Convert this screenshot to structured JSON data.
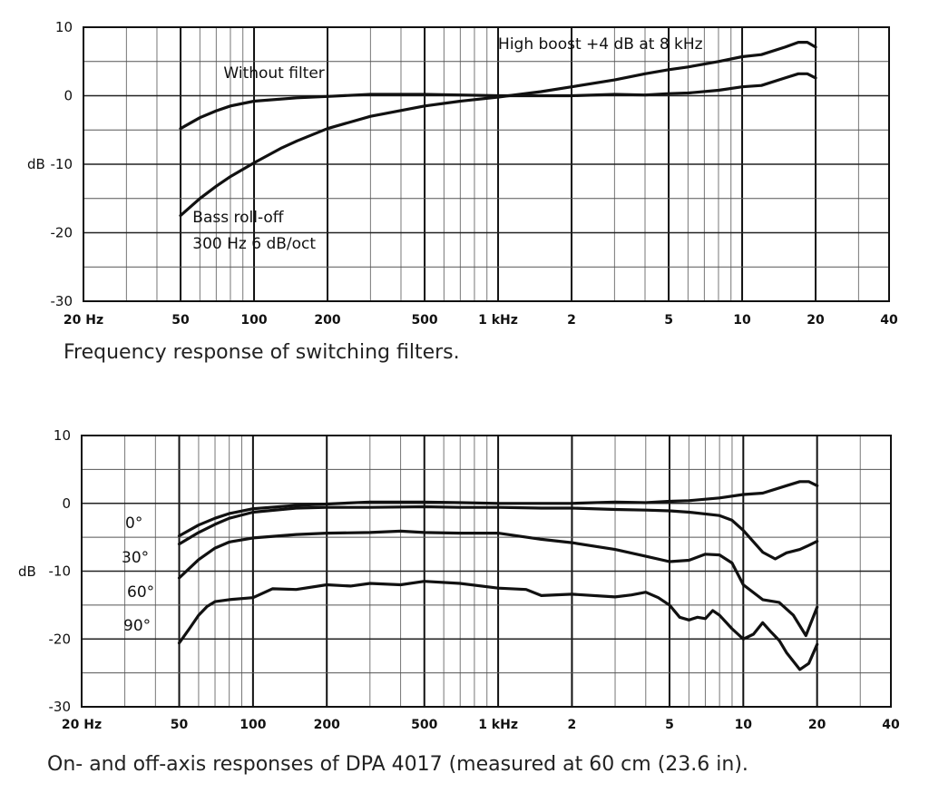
{
  "chart_data": [
    {
      "type": "line",
      "title": "",
      "caption": "Frequency response of switching filters.",
      "xscale": "log",
      "xlim": [
        20,
        40000
      ],
      "ylim": [
        -30,
        10
      ],
      "xlabel": "",
      "ylabel": "dB",
      "y_ticks": [
        {
          "value": 10,
          "label": "10"
        },
        {
          "value": 0,
          "label": "0"
        },
        {
          "value": -10,
          "label": "-10"
        },
        {
          "value": -20,
          "label": "-20"
        },
        {
          "value": -30,
          "label": "-30"
        }
      ],
      "x_ticks": [
        {
          "value": 20,
          "label": "20 Hz"
        },
        {
          "value": 50,
          "label": "50"
        },
        {
          "value": 100,
          "label": "100"
        },
        {
          "value": 200,
          "label": "200"
        },
        {
          "value": 500,
          "label": "500"
        },
        {
          "value": 1000,
          "label": "1 kHz"
        },
        {
          "value": 2000,
          "label": "2"
        },
        {
          "value": 5000,
          "label": "5"
        },
        {
          "value": 10000,
          "label": "10"
        },
        {
          "value": 20000,
          "label": "20"
        },
        {
          "value": 40000,
          "label": "40"
        }
      ],
      "grid": true,
      "annotations": [
        {
          "text": "Without filter",
          "x": 75,
          "y": 2.6,
          "anchor": "start"
        },
        {
          "text": "High boost +4 dB at 8 kHz",
          "x": 1000,
          "y": 6.8,
          "anchor": "start"
        },
        {
          "text": "Bass roll-off",
          "x": 56,
          "y": -18.5,
          "anchor": "start"
        },
        {
          "text": "300 Hz 6 dB/oct",
          "x": 56,
          "y": -22.3,
          "anchor": "start"
        }
      ],
      "series": [
        {
          "name": "",
          "x": [
            50,
            60,
            70,
            80,
            100,
            150,
            200,
            300,
            500,
            700,
            1000,
            1500,
            2000,
            3000,
            4000,
            5000,
            6000,
            8000,
            10000,
            12000,
            15000,
            17000,
            18500,
            20000
          ],
          "values": [
            -4.8,
            -3.2,
            -2.2,
            -1.5,
            -0.8,
            -0.3,
            -0.1,
            0.2,
            0.2,
            0.1,
            0.0,
            0.0,
            0.0,
            0.2,
            0.1,
            0.3,
            0.4,
            0.8,
            1.3,
            1.5,
            2.6,
            3.2,
            3.2,
            2.6
          ]
        },
        {
          "name": "",
          "x": [
            50,
            60,
            70,
            80,
            100,
            130,
            150,
            200,
            300,
            500,
            700,
            1000,
            1500,
            2000,
            3000,
            4000,
            5000,
            6000,
            8000,
            10000,
            12000,
            15000,
            17000,
            18500,
            20000
          ],
          "values": [
            -17.5,
            -15.0,
            -13.2,
            -11.8,
            -9.8,
            -7.6,
            -6.6,
            -4.8,
            -3.0,
            -1.5,
            -0.8,
            -0.2,
            0.6,
            1.3,
            2.3,
            3.2,
            3.8,
            4.2,
            5.0,
            5.7,
            6.0,
            7.1,
            7.8,
            7.8,
            7.1
          ]
        }
      ]
    },
    {
      "type": "line",
      "title": "",
      "caption": "On- and off-axis responses of DPA 4017 (measured at 60 cm (23.6 in).",
      "xscale": "log",
      "xlim": [
        20,
        40000
      ],
      "ylim": [
        -30,
        10
      ],
      "xlabel": "",
      "ylabel": "dB",
      "y_ticks": [
        {
          "value": 10,
          "label": "10"
        },
        {
          "value": 0,
          "label": "0"
        },
        {
          "value": -10,
          "label": "-10"
        },
        {
          "value": -20,
          "label": "-20"
        },
        {
          "value": -30,
          "label": "-30"
        }
      ],
      "x_ticks": [
        {
          "value": 20,
          "label": "20 Hz"
        },
        {
          "value": 50,
          "label": "50"
        },
        {
          "value": 100,
          "label": "100"
        },
        {
          "value": 200,
          "label": "200"
        },
        {
          "value": 500,
          "label": "500"
        },
        {
          "value": 1000,
          "label": "1 kHz"
        },
        {
          "value": 2000,
          "label": "2"
        },
        {
          "value": 5000,
          "label": "5"
        },
        {
          "value": 10000,
          "label": "10"
        },
        {
          "value": 20000,
          "label": "20"
        },
        {
          "value": 40000,
          "label": "40"
        }
      ],
      "grid": true,
      "series": [
        {
          "name": "0°",
          "x": [
            50,
            60,
            70,
            80,
            100,
            150,
            200,
            300,
            500,
            700,
            1000,
            1500,
            2000,
            3000,
            4000,
            5000,
            6000,
            8000,
            10000,
            12000,
            15000,
            17000,
            18500,
            20000
          ],
          "values": [
            -4.8,
            -3.2,
            -2.2,
            -1.5,
            -0.8,
            -0.3,
            -0.1,
            0.2,
            0.2,
            0.1,
            0.0,
            0.0,
            0.0,
            0.2,
            0.1,
            0.3,
            0.4,
            0.8,
            1.3,
            1.5,
            2.6,
            3.2,
            3.2,
            2.6
          ]
        },
        {
          "name": "30°",
          "x": [
            50,
            60,
            70,
            80,
            100,
            150,
            200,
            300,
            500,
            700,
            1000,
            1500,
            2000,
            3000,
            4000,
            5000,
            6000,
            8000,
            9000,
            10000,
            12000,
            13500,
            15000,
            17000,
            18500,
            20000
          ],
          "values": [
            -6.0,
            -4.3,
            -3.1,
            -2.2,
            -1.3,
            -0.7,
            -0.6,
            -0.6,
            -0.5,
            -0.6,
            -0.6,
            -0.7,
            -0.7,
            -0.9,
            -1.0,
            -1.1,
            -1.3,
            -1.8,
            -2.5,
            -4.0,
            -7.2,
            -8.2,
            -7.3,
            -6.8,
            -6.2,
            -5.6
          ]
        },
        {
          "name": "60°",
          "x": [
            50,
            60,
            70,
            80,
            100,
            150,
            200,
            300,
            400,
            500,
            700,
            1000,
            1500,
            2000,
            3000,
            4000,
            5000,
            6000,
            7000,
            8000,
            9000,
            10000,
            12000,
            14000,
            16000,
            18000,
            20000
          ],
          "values": [
            -11.0,
            -8.3,
            -6.6,
            -5.7,
            -5.1,
            -4.6,
            -4.4,
            -4.3,
            -4.1,
            -4.3,
            -4.4,
            -4.4,
            -5.3,
            -5.8,
            -6.8,
            -7.8,
            -8.6,
            -8.4,
            -7.5,
            -7.6,
            -8.8,
            -12.0,
            -14.2,
            -14.6,
            -16.5,
            -19.5,
            -15.3
          ]
        },
        {
          "name": "90°",
          "x": [
            50,
            55,
            60,
            65,
            70,
            80,
            100,
            120,
            150,
            200,
            250,
            300,
            400,
            500,
            700,
            1000,
            1300,
            1500,
            2000,
            3000,
            3500,
            4000,
            4500,
            5000,
            5500,
            6000,
            6500,
            7000,
            7500,
            8000,
            9000,
            10000,
            11000,
            12000,
            13000,
            14000,
            15000,
            17000,
            18500,
            20000
          ],
          "values": [
            -20.6,
            -18.5,
            -16.5,
            -15.2,
            -14.5,
            -14.2,
            -13.9,
            -12.6,
            -12.7,
            -12.0,
            -12.2,
            -11.8,
            -12.0,
            -11.5,
            -11.8,
            -12.5,
            -12.7,
            -13.6,
            -13.4,
            -13.8,
            -13.5,
            -13.1,
            -13.9,
            -15.0,
            -16.8,
            -17.2,
            -16.8,
            -17.0,
            -15.8,
            -16.5,
            -18.5,
            -20.0,
            -19.3,
            -17.6,
            -19.0,
            -20.2,
            -22.0,
            -24.5,
            -23.6,
            -20.8
          ]
        }
      ]
    }
  ]
}
